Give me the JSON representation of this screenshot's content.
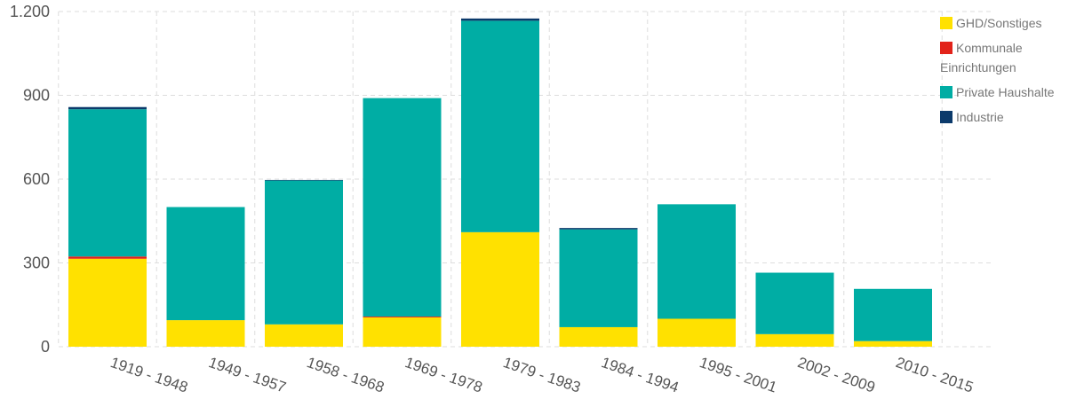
{
  "chart_data": {
    "type": "bar",
    "stacked": true,
    "categories": [
      "1919 - 1948",
      "1949 - 1957",
      "1958 - 1968",
      "1969 - 1978",
      "1979 - 1983",
      "1984 - 1994",
      "1995 - 2001",
      "2002 - 2009",
      "2010 - 2015"
    ],
    "series": [
      {
        "name": "GHD/Sonstiges",
        "color": "#ffe100",
        "values": [
          315,
          95,
          80,
          105,
          410,
          70,
          100,
          45,
          20
        ]
      },
      {
        "name": "Kommunale Einrichtungen",
        "color": "#e2231a",
        "values": [
          8,
          0,
          0,
          3,
          0,
          0,
          0,
          0,
          0
        ]
      },
      {
        "name": "Private Haushalte",
        "color": "#00ada4",
        "values": [
          527,
          405,
          515,
          782,
          757,
          350,
          410,
          220,
          187
        ]
      },
      {
        "name": "Industrie",
        "color": "#0b3a6b",
        "values": [
          8,
          0,
          2,
          0,
          8,
          5,
          0,
          0,
          0
        ]
      }
    ],
    "legend_labels": [
      "GHD/Sonstiges",
      "Kommunale",
      "Einrichtungen",
      "Private Haushalte",
      "Industrie"
    ],
    "yticks": [
      0,
      300,
      600,
      900,
      1200
    ],
    "ytick_labels": [
      "0",
      "300",
      "600",
      "900",
      "1.200"
    ],
    "ylim": [
      0,
      1200
    ],
    "grid": true,
    "legend_position": "top-right",
    "title": "",
    "xlabel": "",
    "ylabel": ""
  }
}
